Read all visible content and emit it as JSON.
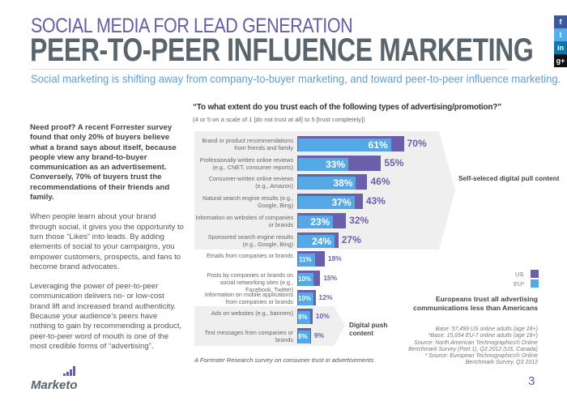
{
  "header": {
    "kicker": "SOCIAL MEDIA FOR LEAD GENERATION",
    "title": "PEER-TO-PEER INFLUENCE MARKETING",
    "subtitle": "Social marketing is shifting away from company-to-buyer marketing, and toward peer-to-peer influence marketing."
  },
  "social": [
    {
      "icon": "facebook-icon",
      "glyph": "f",
      "color": "#3b5998"
    },
    {
      "icon": "twitter-icon",
      "glyph": "t",
      "color": "#55acee"
    },
    {
      "icon": "linkedin-icon",
      "glyph": "in",
      "color": "#0e76a8"
    },
    {
      "icon": "google-plus-icon",
      "glyph": "g+",
      "color": "#111111"
    }
  ],
  "body": {
    "p1": "Need proof? A recent Forrester survey found that only 20% of buyers believe what a brand says about itself, because people view any brand-to-buyer communication as an advertisement. Conversely, 70% of buyers trust the recommendations of their friends and family.",
    "p2": "When people learn about your brand through social, it gives you the opportunity to turn those “Likes” into leads. By adding elements of social to your campaigns, you empower customers, prospects, and fans to become brand advocates.",
    "p3": "Leveraging the power of peer-to-peer communication delivers no- or low-cost brand lift and increased brand authenticity. Because your audience’s peers have nothing to gain by recommending a product, peer-to-peer word of mouth is one of the most credible forms of “advertising”."
  },
  "chart_data": {
    "type": "bar",
    "orientation": "horizontal",
    "title": "“To what extent do you trust each of the following types of advertising/promotion?”",
    "subtitle": "(4 or 5 on a scale of 1 [do not trust at all] to 5 [trust completely])",
    "categories": [
      "Brand or product recommendations from friends and family",
      "Professionally written online reviews (e.g., CNET, consumer reports)",
      "Consumer-written online reviews (e.g., Amazon)",
      "Natural search engine results (e.g., Google, Bing)",
      "Information on websites of companies or brands",
      "Sponsored search engine results (e.g., Google, Bing)",
      "Emails from companies or brands",
      "Posts by companies or brands on social networking sites (e.g., Facebook, Twitter)",
      "Information on mobile applications from companies or brands",
      "Ads on websites (e.g., banners)",
      "Text messages from companies or brands"
    ],
    "series": [
      {
        "name": "US",
        "color": "#6a5fab",
        "values": [
          70,
          55,
          46,
          43,
          32,
          27,
          18,
          15,
          12,
          10,
          9
        ]
      },
      {
        "name": "EU*",
        "color": "#55a8e6",
        "values": [
          61,
          33,
          38,
          37,
          23,
          24,
          11,
          10,
          10,
          8,
          8
        ]
      }
    ],
    "value_suffix": "%",
    "legend": "right",
    "groups": [
      {
        "label": "Self-seleced digital pull content",
        "rows": [
          0,
          5
        ]
      },
      {
        "label": "Digital push content",
        "rows": [
          9,
          10
        ]
      }
    ],
    "xlim": [
      0,
      100
    ]
  },
  "note": "Europeans trust all advertising communications less than Americans",
  "sources": [
    "Base: 57,499 US online adults (age 18+)",
    "*Base: 15,654 EU-7 online adults (age 18+)",
    "Source: North American Technographics® Online",
    "Benchmark Survey (Part 1), Q2 2012 (US, Canada)",
    "* Source: European Technographics® Online",
    "Benchmark Survey, Q3 2012"
  ],
  "caption": "A Forrester Research survey on consumer trust in advertisements",
  "footer": {
    "logo": "Marketo",
    "page": "3"
  }
}
